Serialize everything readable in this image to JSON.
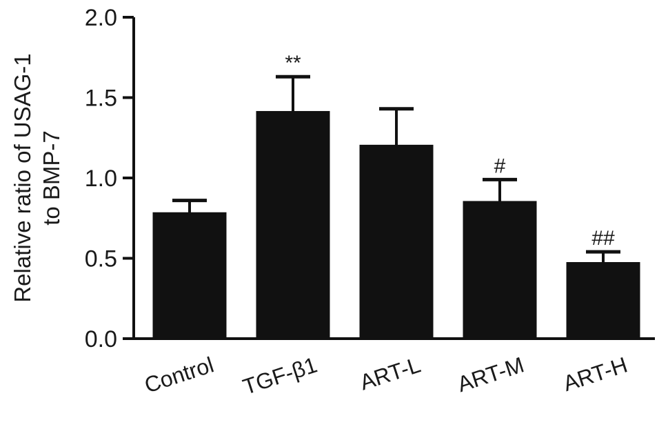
{
  "chart_data": {
    "type": "bar",
    "categories": [
      "Control",
      "TGF-β1",
      "ART-L",
      "ART-M",
      "ART-H"
    ],
    "values": [
      0.78,
      1.41,
      1.2,
      0.85,
      0.47
    ],
    "error_upper": [
      0.86,
      1.63,
      1.43,
      0.99,
      0.54
    ],
    "annotations": [
      "",
      "**",
      "",
      "#",
      "##"
    ],
    "ylabel_line1": "Relative ratio of USAG-1",
    "ylabel_line2": "to BMP-7",
    "ylim": [
      0,
      2.0
    ],
    "yticks": [
      0.0,
      0.5,
      1.0,
      1.5,
      2.0
    ],
    "ytick_labels": [
      "0.0",
      "0.5",
      "1.0",
      "1.5",
      "2.0"
    ],
    "bar_color": "#111111",
    "grid": false
  }
}
